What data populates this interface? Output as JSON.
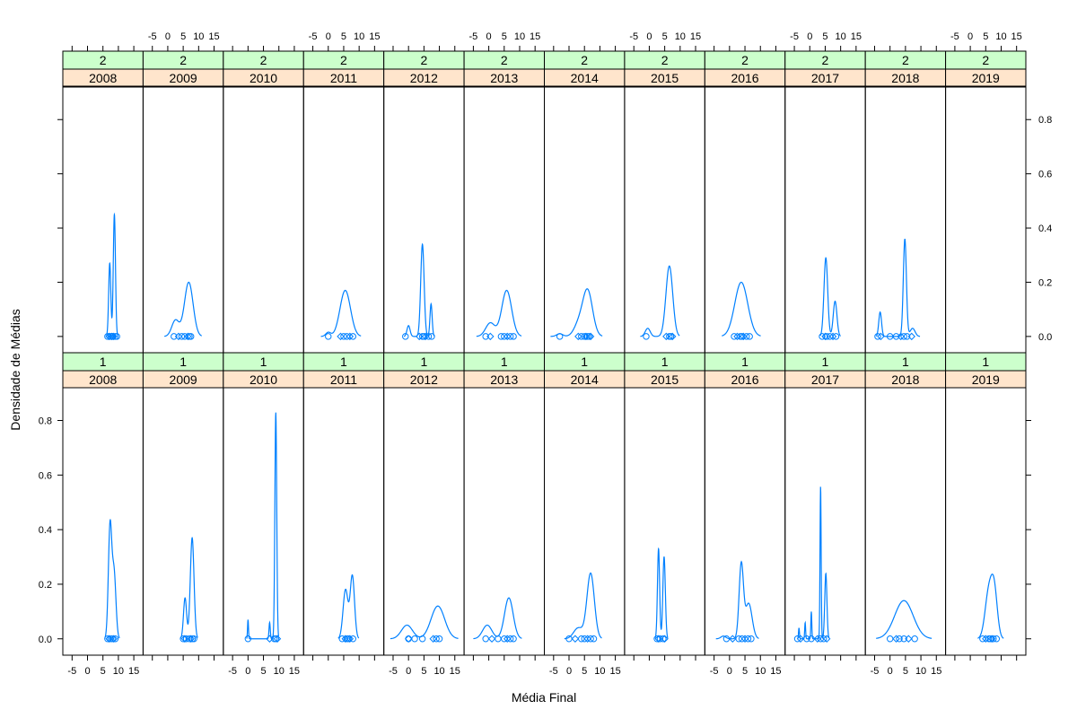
{
  "chart_data": {
    "type": "density",
    "xlabel": "Média Final",
    "ylabel": "Densidade de Médias",
    "xlim": [
      -8,
      18
    ],
    "ylim": [
      -0.06,
      0.92
    ],
    "x_ticks": [
      -5,
      0,
      5,
      10,
      15
    ],
    "y_ticks": [
      0.0,
      0.2,
      0.4,
      0.6,
      0.8
    ],
    "x_tick_labels": [
      "-5",
      "0",
      "5",
      "10",
      "15"
    ],
    "y_tick_labels": [
      "0.0",
      "0.2",
      "0.4",
      "0.6",
      "0.8"
    ],
    "years": [
      "2008",
      "2009",
      "2010",
      "2011",
      "2012",
      "2013",
      "2014",
      "2015",
      "2016",
      "2017",
      "2018",
      "2019"
    ],
    "groups": [
      "1",
      "2"
    ],
    "strip_colors": {
      "group": "#ccffcc",
      "year": "#ffe5cc"
    },
    "line_color": "#0080ff",
    "panels": [
      {
        "group": "2",
        "year": "2008",
        "peaks": [
          [
            7.2,
            0.27,
            0.35
          ],
          [
            8.7,
            0.45,
            0.35
          ]
        ],
        "points": [
          6.5,
          7,
          7.5,
          8,
          8.5,
          9,
          9.5,
          7.8,
          8.2
        ]
      },
      {
        "group": "2",
        "year": "2009",
        "peaks": [
          [
            2.5,
            0.06,
            1.2
          ],
          [
            6.8,
            0.2,
            1.4
          ]
        ],
        "points": [
          2,
          3.5,
          4.5,
          5.5,
          6.5,
          7,
          7.5
        ]
      },
      {
        "group": "2",
        "year": "2010",
        "peaks": [],
        "points": []
      },
      {
        "group": "2",
        "year": "2011",
        "peaks": [
          [
            0,
            0.015,
            0.8
          ],
          [
            5.5,
            0.17,
            1.7
          ]
        ],
        "points": [
          0,
          4,
          5,
          6,
          7,
          8
        ]
      },
      {
        "group": "2",
        "year": "2012",
        "peaks": [
          [
            0,
            0.04,
            0.5
          ],
          [
            4.5,
            0.34,
            0.55
          ],
          [
            7.3,
            0.12,
            0.35
          ]
        ],
        "points": [
          -1,
          3.5,
          4.5,
          5,
          5.5,
          6.5,
          7.5
        ]
      },
      {
        "group": "2",
        "year": "2013",
        "peaks": [
          [
            0.5,
            0.05,
            1.5
          ],
          [
            5.8,
            0.17,
            1.6
          ]
        ],
        "points": [
          -1,
          0.5,
          4,
          5,
          6,
          7,
          8
        ]
      },
      {
        "group": "2",
        "year": "2014",
        "peaks": [
          [
            -3,
            0.01,
            1
          ],
          [
            3,
            0.04,
            1.5
          ],
          [
            6,
            0.17,
            1.6
          ]
        ],
        "points": [
          -3,
          3,
          4,
          5,
          5.5,
          6,
          6.5,
          7
        ]
      },
      {
        "group": "2",
        "year": "2015",
        "peaks": [
          [
            -0.5,
            0.03,
            0.8
          ],
          [
            6.5,
            0.26,
            1.1
          ]
        ],
        "points": [
          -1,
          5.5,
          6.5,
          7,
          7.5
        ]
      },
      {
        "group": "2",
        "year": "2016",
        "peaks": [
          [
            3.8,
            0.2,
            2.1
          ]
        ],
        "points": [
          1.5,
          2.5,
          3.5,
          4,
          4.5,
          5.5,
          6.5
        ]
      },
      {
        "group": "2",
        "year": "2017",
        "peaks": [
          [
            5.2,
            0.29,
            0.6
          ],
          [
            8.2,
            0.13,
            0.6
          ]
        ],
        "points": [
          4,
          5,
          5.5,
          6.5,
          7.5,
          8.5
        ]
      },
      {
        "group": "2",
        "year": "2018",
        "peaks": [
          [
            -3.2,
            0.09,
            0.45
          ],
          [
            4.8,
            0.36,
            0.5
          ],
          [
            7.3,
            0.03,
            0.8
          ]
        ],
        "points": [
          -4,
          -3,
          0,
          2,
          3.5,
          4.5,
          5.5,
          7
        ]
      },
      {
        "group": "2",
        "year": "2019",
        "peaks": [],
        "points": []
      },
      {
        "group": "1",
        "year": "2008",
        "peaks": [
          [
            7.3,
            0.41,
            0.55
          ],
          [
            8.6,
            0.24,
            0.6
          ]
        ],
        "points": [
          6.5,
          7,
          7.5,
          8,
          8.5,
          9
        ]
      },
      {
        "group": "1",
        "year": "2009",
        "peaks": [
          [
            5.6,
            0.15,
            0.5
          ],
          [
            7.9,
            0.37,
            0.6
          ]
        ],
        "points": [
          5,
          5.5,
          6,
          7,
          7.5,
          8,
          8.5
        ]
      },
      {
        "group": "1",
        "year": "2010",
        "peaks": [
          [
            0,
            0.07,
            0.15
          ],
          [
            7,
            0.06,
            0.2
          ],
          [
            9,
            0.83,
            0.3
          ]
        ],
        "points": [
          0,
          7,
          8.5,
          9,
          9.5
        ]
      },
      {
        "group": "1",
        "year": "2011",
        "peaks": [
          [
            5.6,
            0.18,
            0.8
          ],
          [
            7.8,
            0.23,
            0.7
          ]
        ],
        "points": [
          4.5,
          5.5,
          6,
          6.5,
          7,
          8
        ]
      },
      {
        "group": "1",
        "year": "2012",
        "peaks": [
          [
            -0.5,
            0.05,
            1.8
          ],
          [
            9.5,
            0.12,
            2.2
          ]
        ],
        "points": [
          0,
          0,
          2,
          4.5,
          8,
          9,
          10
        ]
      },
      {
        "group": "1",
        "year": "2013",
        "peaks": [
          [
            -0.5,
            0.05,
            1.5
          ],
          [
            6.5,
            0.15,
            1.4
          ]
        ],
        "points": [
          -1,
          1,
          3,
          5,
          6,
          7,
          8
        ]
      },
      {
        "group": "1",
        "year": "2014",
        "peaks": [
          [
            3,
            0.04,
            1.5
          ],
          [
            7,
            0.24,
            1.2
          ]
        ],
        "points": [
          0,
          2,
          4,
          5,
          6,
          7,
          8
        ]
      },
      {
        "group": "1",
        "year": "2015",
        "peaks": [
          [
            3,
            0.33,
            0.35
          ],
          [
            4.8,
            0.3,
            0.4
          ]
        ],
        "points": [
          2.5,
          3,
          3.5,
          4.5,
          5
        ]
      },
      {
        "group": "1",
        "year": "2016",
        "peaks": [
          [
            -2,
            0.01,
            0.8
          ],
          [
            3.8,
            0.27,
            0.7
          ],
          [
            6.2,
            0.13,
            1.1
          ]
        ],
        "points": [
          -1,
          1,
          3,
          4,
          5,
          6,
          7
        ]
      },
      {
        "group": "1",
        "year": "2017",
        "peaks": [
          [
            -3.5,
            0.04,
            0.15
          ],
          [
            -1.5,
            0.06,
            0.15
          ],
          [
            0.5,
            0.1,
            0.15
          ],
          [
            3.5,
            0.56,
            0.18
          ],
          [
            5.2,
            0.24,
            0.35
          ]
        ],
        "points": [
          -4,
          -3,
          -1,
          0.5,
          2.5,
          3.5,
          4.5,
          5.5
        ]
      },
      {
        "group": "1",
        "year": "2018",
        "peaks": [
          [
            4.5,
            0.14,
            3
          ]
        ],
        "points": [
          0,
          2,
          3,
          4.5,
          6,
          8
        ]
      },
      {
        "group": "1",
        "year": "2019",
        "peaks": [
          [
            6,
            0.17,
            1.2
          ],
          [
            7.8,
            0.16,
            1
          ]
        ],
        "points": [
          4,
          5,
          6,
          6.5,
          7,
          7.5,
          8.5
        ]
      }
    ]
  }
}
